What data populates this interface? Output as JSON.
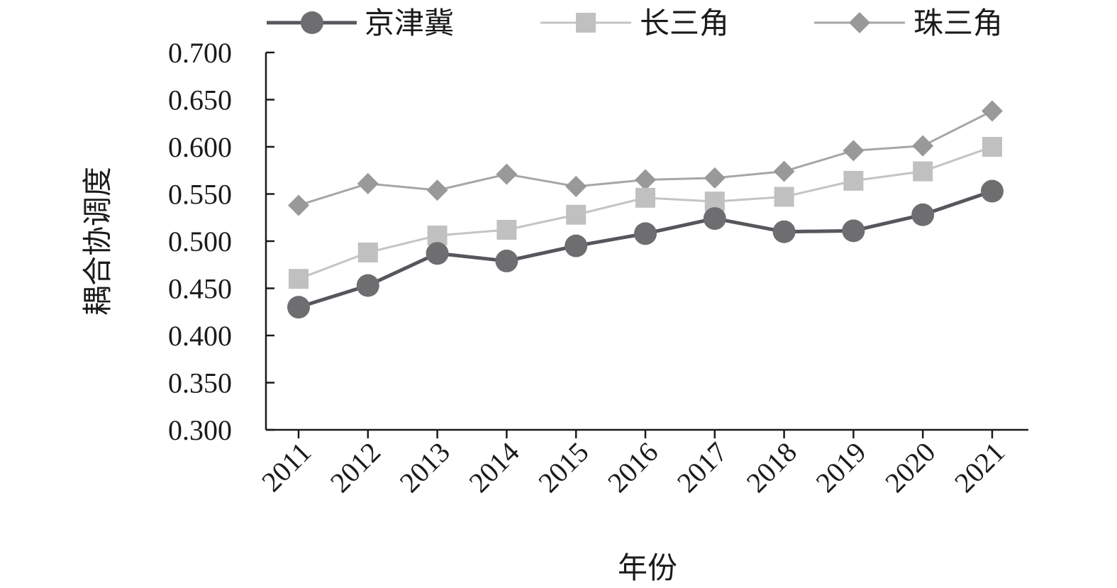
{
  "chart_data": {
    "type": "line",
    "title": "",
    "xlabel": "年份",
    "ylabel": "耦合协调度",
    "categories": [
      "2011",
      "2012",
      "2013",
      "2014",
      "2015",
      "2016",
      "2017",
      "2018",
      "2019",
      "2020",
      "2021"
    ],
    "ylim": [
      0.3,
      0.7
    ],
    "yticks": [
      "0.300",
      "0.350",
      "0.400",
      "0.450",
      "0.500",
      "0.550",
      "0.600",
      "0.650",
      "0.700"
    ],
    "grid": false,
    "legend_position": "top",
    "series": [
      {
        "name": "京津冀",
        "marker": "circle",
        "color": "#55575c",
        "marker_color": "#6e6e70",
        "values": [
          0.43,
          0.453,
          0.487,
          0.479,
          0.495,
          0.508,
          0.524,
          0.51,
          0.511,
          0.528,
          0.553
        ]
      },
      {
        "name": "长三角",
        "marker": "square",
        "color": "#c4c4c4",
        "marker_color": "#c0c0c0",
        "values": [
          0.46,
          0.488,
          0.506,
          0.512,
          0.528,
          0.546,
          0.542,
          0.547,
          0.564,
          0.574,
          0.6
        ]
      },
      {
        "name": "珠三角",
        "marker": "diamond",
        "color": "#a6a6a6",
        "marker_color": "#999999",
        "values": [
          0.538,
          0.561,
          0.554,
          0.571,
          0.558,
          0.565,
          0.567,
          0.574,
          0.596,
          0.601,
          0.638
        ]
      }
    ]
  }
}
